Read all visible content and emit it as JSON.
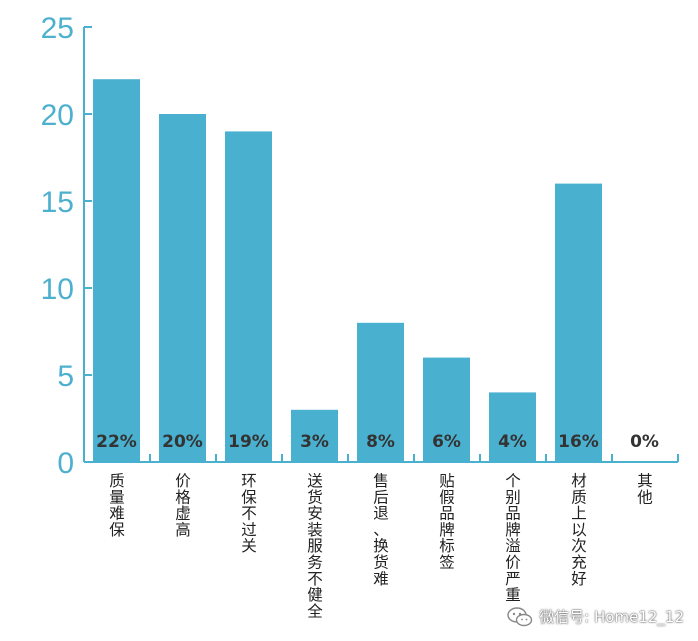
{
  "chart_data": {
    "type": "bar",
    "categories": [
      "质量难保",
      "价格虚高",
      "环保不过关",
      "送货安装服务不健全",
      "售后退、换货难",
      "贴假品牌标签",
      "个别品牌溢价严重",
      "材质上以次充好",
      "其他"
    ],
    "values": [
      22,
      20,
      19,
      3,
      8,
      6,
      4,
      16,
      0
    ],
    "data_labels": [
      "22%",
      "20%",
      "19%",
      "3%",
      "8%",
      "6%",
      "4%",
      "16%",
      "0%"
    ],
    "y_ticks": [
      "0",
      "5",
      "10",
      "15",
      "20",
      "25"
    ],
    "ylim": [
      0,
      25
    ],
    "title": "",
    "xlabel": "",
    "ylabel": "",
    "grid": false,
    "colors": {
      "bar": "#4ab0cf",
      "axis": "#4ab0cf",
      "tick_text": "#4db0cf"
    }
  },
  "watermark": {
    "text": "微信号: Home12_12",
    "icon": "wechat-icon"
  }
}
